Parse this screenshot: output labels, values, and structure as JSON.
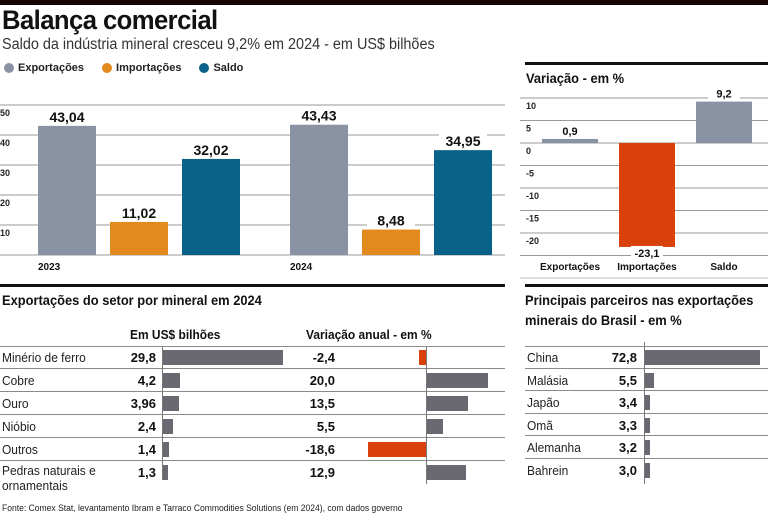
{
  "header": {
    "title": "Balança comercial",
    "subtitle": "Saldo da indústria mineral cresceu 9,2% em 2024 - em US$ bilhões"
  },
  "legend": [
    {
      "label": "Exportações",
      "color": "#8a93a3"
    },
    {
      "label": "Importações",
      "color": "#e38a1e"
    },
    {
      "label": "Saldo",
      "color": "#0a6289"
    }
  ],
  "source": "Fonte: Comex Stat, levantamento Ibram e Tarraco Commodities Solutions (em 2024), com dados governo",
  "chart_data": [
    {
      "type": "bar",
      "title": "Balança comercial",
      "subtitle": "Saldo da indústria mineral cresceu 9,2% em 2024 - em US$ bilhões",
      "categories": [
        "2023",
        "2024"
      ],
      "series": [
        {
          "name": "Exportações",
          "color": "#8a93a3",
          "values": [
            43.04,
            43.43
          ],
          "labels": [
            "43,04",
            "43,43"
          ]
        },
        {
          "name": "Importações",
          "color": "#e38a1e",
          "values": [
            11.02,
            8.48
          ],
          "labels": [
            "11,02",
            "8,48"
          ]
        },
        {
          "name": "Saldo",
          "color": "#0a6289",
          "values": [
            32.02,
            34.95
          ],
          "labels": [
            "32,02",
            "34,95"
          ]
        }
      ],
      "yticks": [
        10,
        20,
        30,
        40,
        50
      ],
      "ylim": [
        0,
        50
      ],
      "grid": true,
      "legend": "top-left"
    },
    {
      "type": "bar",
      "title": "Variação - em %",
      "categories": [
        "Exportações",
        "Importações",
        "Saldo"
      ],
      "values": [
        0.9,
        -23.1,
        9.2
      ],
      "labels": [
        "0,9",
        "-23,1",
        "9,2"
      ],
      "colors": [
        "#8a93a3",
        "#d9410b",
        "#8a93a3"
      ],
      "yticks": [
        10,
        5,
        0,
        -5,
        -10,
        -15,
        -20
      ],
      "ylim": [
        -25,
        12
      ],
      "grid": true
    },
    {
      "type": "table",
      "title": "Exportações do setor por mineral em 2024",
      "columns": [
        "Em US$ bilhões",
        "Variação anual - em %"
      ],
      "rows": [
        {
          "mineral": "Minério de ferro",
          "value": 29.8,
          "value_label": "29,8",
          "change": -2.4,
          "change_label": "-2,4"
        },
        {
          "mineral": "Cobre",
          "value": 4.2,
          "value_label": "4,2",
          "change": 20.0,
          "change_label": "20,0"
        },
        {
          "mineral": "Ouro",
          "value": 3.96,
          "value_label": "3,96",
          "change": 13.5,
          "change_label": "13,5"
        },
        {
          "mineral": "Nióbio",
          "value": 2.4,
          "value_label": "2,4",
          "change": 5.5,
          "change_label": "5,5"
        },
        {
          "mineral": "Outros",
          "value": 1.4,
          "value_label": "1,4",
          "change": -18.6,
          "change_label": "-18,6"
        },
        {
          "mineral": "Pedras naturais e ornamentais",
          "value": 1.3,
          "value_label": "1,3",
          "change": 12.9,
          "change_label": "12,9"
        }
      ],
      "positive_color": "#6a6870",
      "negative_color": "#d9410b"
    },
    {
      "type": "table",
      "title": "Principais parceiros nas exportações minerais do Brasil - em %",
      "rows": [
        {
          "country": "China",
          "value": 72.8,
          "label": "72,8"
        },
        {
          "country": "Malásia",
          "value": 5.5,
          "label": "5,5"
        },
        {
          "country": "Japão",
          "value": 3.4,
          "label": "3,4"
        },
        {
          "country": "Omã",
          "value": 3.3,
          "label": "3,3"
        },
        {
          "country": "Alemanha",
          "value": 3.2,
          "label": "3,2"
        },
        {
          "country": "Bahrein",
          "value": 3.0,
          "label": "3,0"
        }
      ],
      "bar_color": "#6a6870"
    }
  ]
}
